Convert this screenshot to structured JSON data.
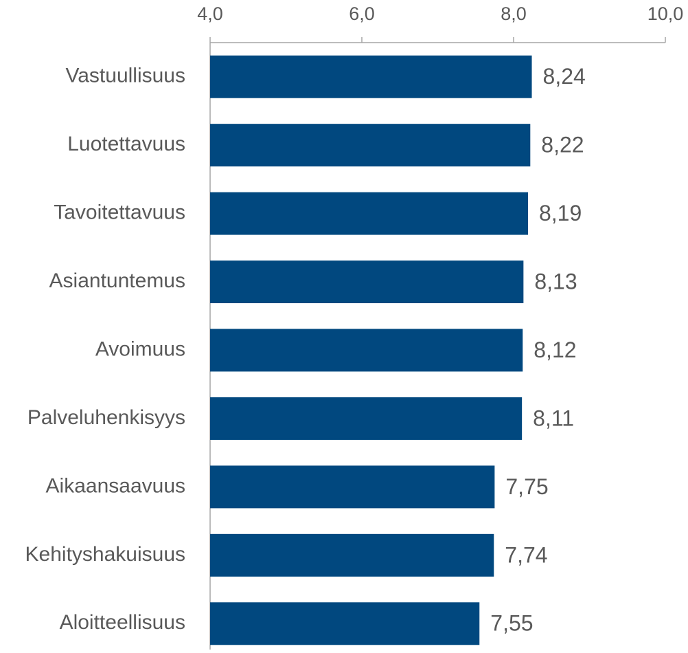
{
  "chart_data": {
    "type": "bar",
    "orientation": "horizontal",
    "categories": [
      "Vastuullisuus",
      "Luotettavuus",
      "Tavoitettavuus",
      "Asiantuntemus",
      "Avoimuus",
      "Palveluhenkisyys",
      "Aikaansaavuus",
      "Kehityshakuisuus",
      "Aloitteellisuus"
    ],
    "values": [
      8.24,
      8.22,
      8.19,
      8.13,
      8.12,
      8.11,
      7.75,
      7.74,
      7.55
    ],
    "value_labels": [
      "8,24",
      "8,22",
      "8,19",
      "8,13",
      "8,12",
      "8,11",
      "7,75",
      "7,74",
      "7,55"
    ],
    "color": "#01487f",
    "xlim": [
      4,
      10
    ],
    "xticks": [
      {
        "value": 4,
        "label": "4,0"
      },
      {
        "value": 6,
        "label": "6,0"
      },
      {
        "value": 8,
        "label": "8,0"
      },
      {
        "value": 10,
        "label": "10,0"
      }
    ],
    "grid": false
  }
}
